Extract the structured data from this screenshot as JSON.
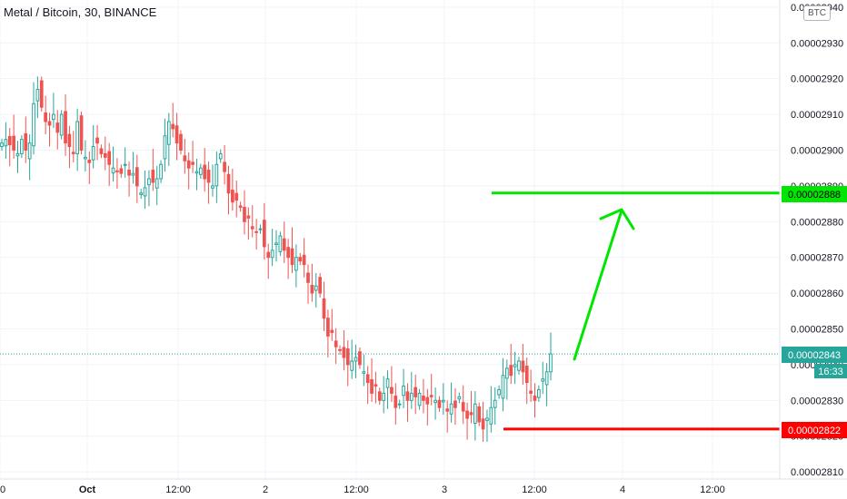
{
  "header": {
    "title": "Metal / Bitcoin, 30, BINANCE",
    "currency_badge": "BTC"
  },
  "colors": {
    "up": "#26a69a",
    "down": "#ef5350",
    "target_line": "#00e600",
    "stop_line": "#ff0000",
    "grid": "#f0f3fa",
    "current_price_line": "#26a69a"
  },
  "price_labels": {
    "target": "0.00002888",
    "current": "0.00002843",
    "countdown": "16:33",
    "stop": "0.00002822"
  },
  "chart_data": {
    "type": "candlestick",
    "title": "Metal / Bitcoin, 30, BINANCE",
    "ylim": [
      2.808e-05,
      2.942e-05
    ],
    "y_ticks": [
      2.81e-05,
      2.82e-05,
      2.83e-05,
      2.84e-05,
      2.85e-05,
      2.86e-05,
      2.87e-05,
      2.88e-05,
      2.89e-05,
      2.9e-05,
      2.91e-05,
      2.92e-05,
      2.93e-05,
      2.94e-05
    ],
    "y_tick_labels": [
      "0.00002810",
      "0.00002820",
      "0.00002830",
      "0.00002840",
      "0.00002850",
      "0.00002860",
      "0.00002870",
      "0.00002880",
      "0.00002890",
      "0.00002900",
      "0.00002910",
      "0.00002920",
      "0.00002930",
      "0.00002940"
    ],
    "x_tick_labels": [
      "00",
      "Oct",
      "12:00",
      "2",
      "12:00",
      "3",
      "12:00",
      "4",
      "12:00"
    ],
    "close": [
      2.902e-05,
      2.903e-05,
      2.9015e-05,
      2.9e-05,
      2.899e-05,
      2.903e-05,
      2.9e-05,
      2.902e-05,
      2.913e-05,
      2.917e-05,
      2.912e-05,
      2.908e-05,
      2.907e-05,
      2.91e-05,
      2.905e-05,
      2.91e-05,
      2.902e-05,
      2.901e-05,
      2.899e-05,
      2.908e-05,
      2.9e-05,
      2.898e-05,
      2.8965e-05,
      2.901e-05,
      2.902e-05,
      2.899e-05,
      2.898e-05,
      2.896e-05,
      2.895e-05,
      2.894e-05,
      2.8935e-05,
      2.896e-05,
      2.893e-05,
      2.8935e-05,
      2.89e-05,
      2.888e-05,
      2.8895e-05,
      2.892e-05,
      2.891e-05,
      2.892e-05,
      2.896e-05,
      2.904e-05,
      2.908e-05,
      2.906e-05,
      2.902e-05,
      2.9e-05,
      2.897e-05,
      2.895e-05,
      2.896e-05,
      2.894e-05,
      2.895e-05,
      2.892e-05,
      2.891e-05,
      2.89e-05,
      2.896e-05,
      2.899e-05,
      2.894e-05,
      2.888e-05,
      2.8855e-05,
      2.886e-05,
      2.884e-05,
      2.88e-05,
      2.881e-05,
      2.878e-05,
      2.877e-05,
      2.878e-05,
      2.873e-05,
      2.87e-05,
      2.872e-05,
      2.874e-05,
      2.876e-05,
      2.872e-05,
      2.87e-05,
      2.868e-05,
      2.87e-05,
      2.869e-05,
      2.868e-05,
      2.863e-05,
      2.86e-05,
      2.862e-05,
      2.86e-05,
      2.853e-05,
      2.848e-05,
      2.849e-05,
      2.845e-05,
      2.844e-05,
      2.842e-05,
      2.84e-05,
      2.841e-05,
      2.842e-05,
      2.84e-05,
      2.838e-05,
      2.835e-05,
      2.832e-05,
      2.834e-05,
      2.83e-05,
      2.832e-05,
      2.836e-05,
      2.832e-05,
      2.828e-05,
      2.829e-05,
      2.834e-05,
      2.83e-05,
      2.832e-05,
      2.831e-05,
      2.832e-05,
      2.83e-05,
      2.829e-05,
      2.831e-05,
      2.83e-05,
      2.828e-05,
      2.83e-05,
      2.827e-05,
      2.829e-05,
      2.828e-05,
      2.831e-05,
      2.827e-05,
      2.825e-05,
      2.826e-05,
      2.829e-05,
      2.824e-05,
      2.822e-05,
      2.825e-05,
      2.828e-05,
      2.83e-05,
      2.833e-05,
      2.837e-05,
      2.839e-05,
      2.837e-05,
      2.84e-05,
      2.841e-05,
      2.838e-05,
      2.835e-05,
      2.832e-05,
      2.83e-05,
      2.833e-05,
      2.836e-05,
      2.838e-05,
      2.843e-05
    ]
  },
  "overlays": {
    "target_label": "0.00002888",
    "stop_label": "0.00002822"
  }
}
